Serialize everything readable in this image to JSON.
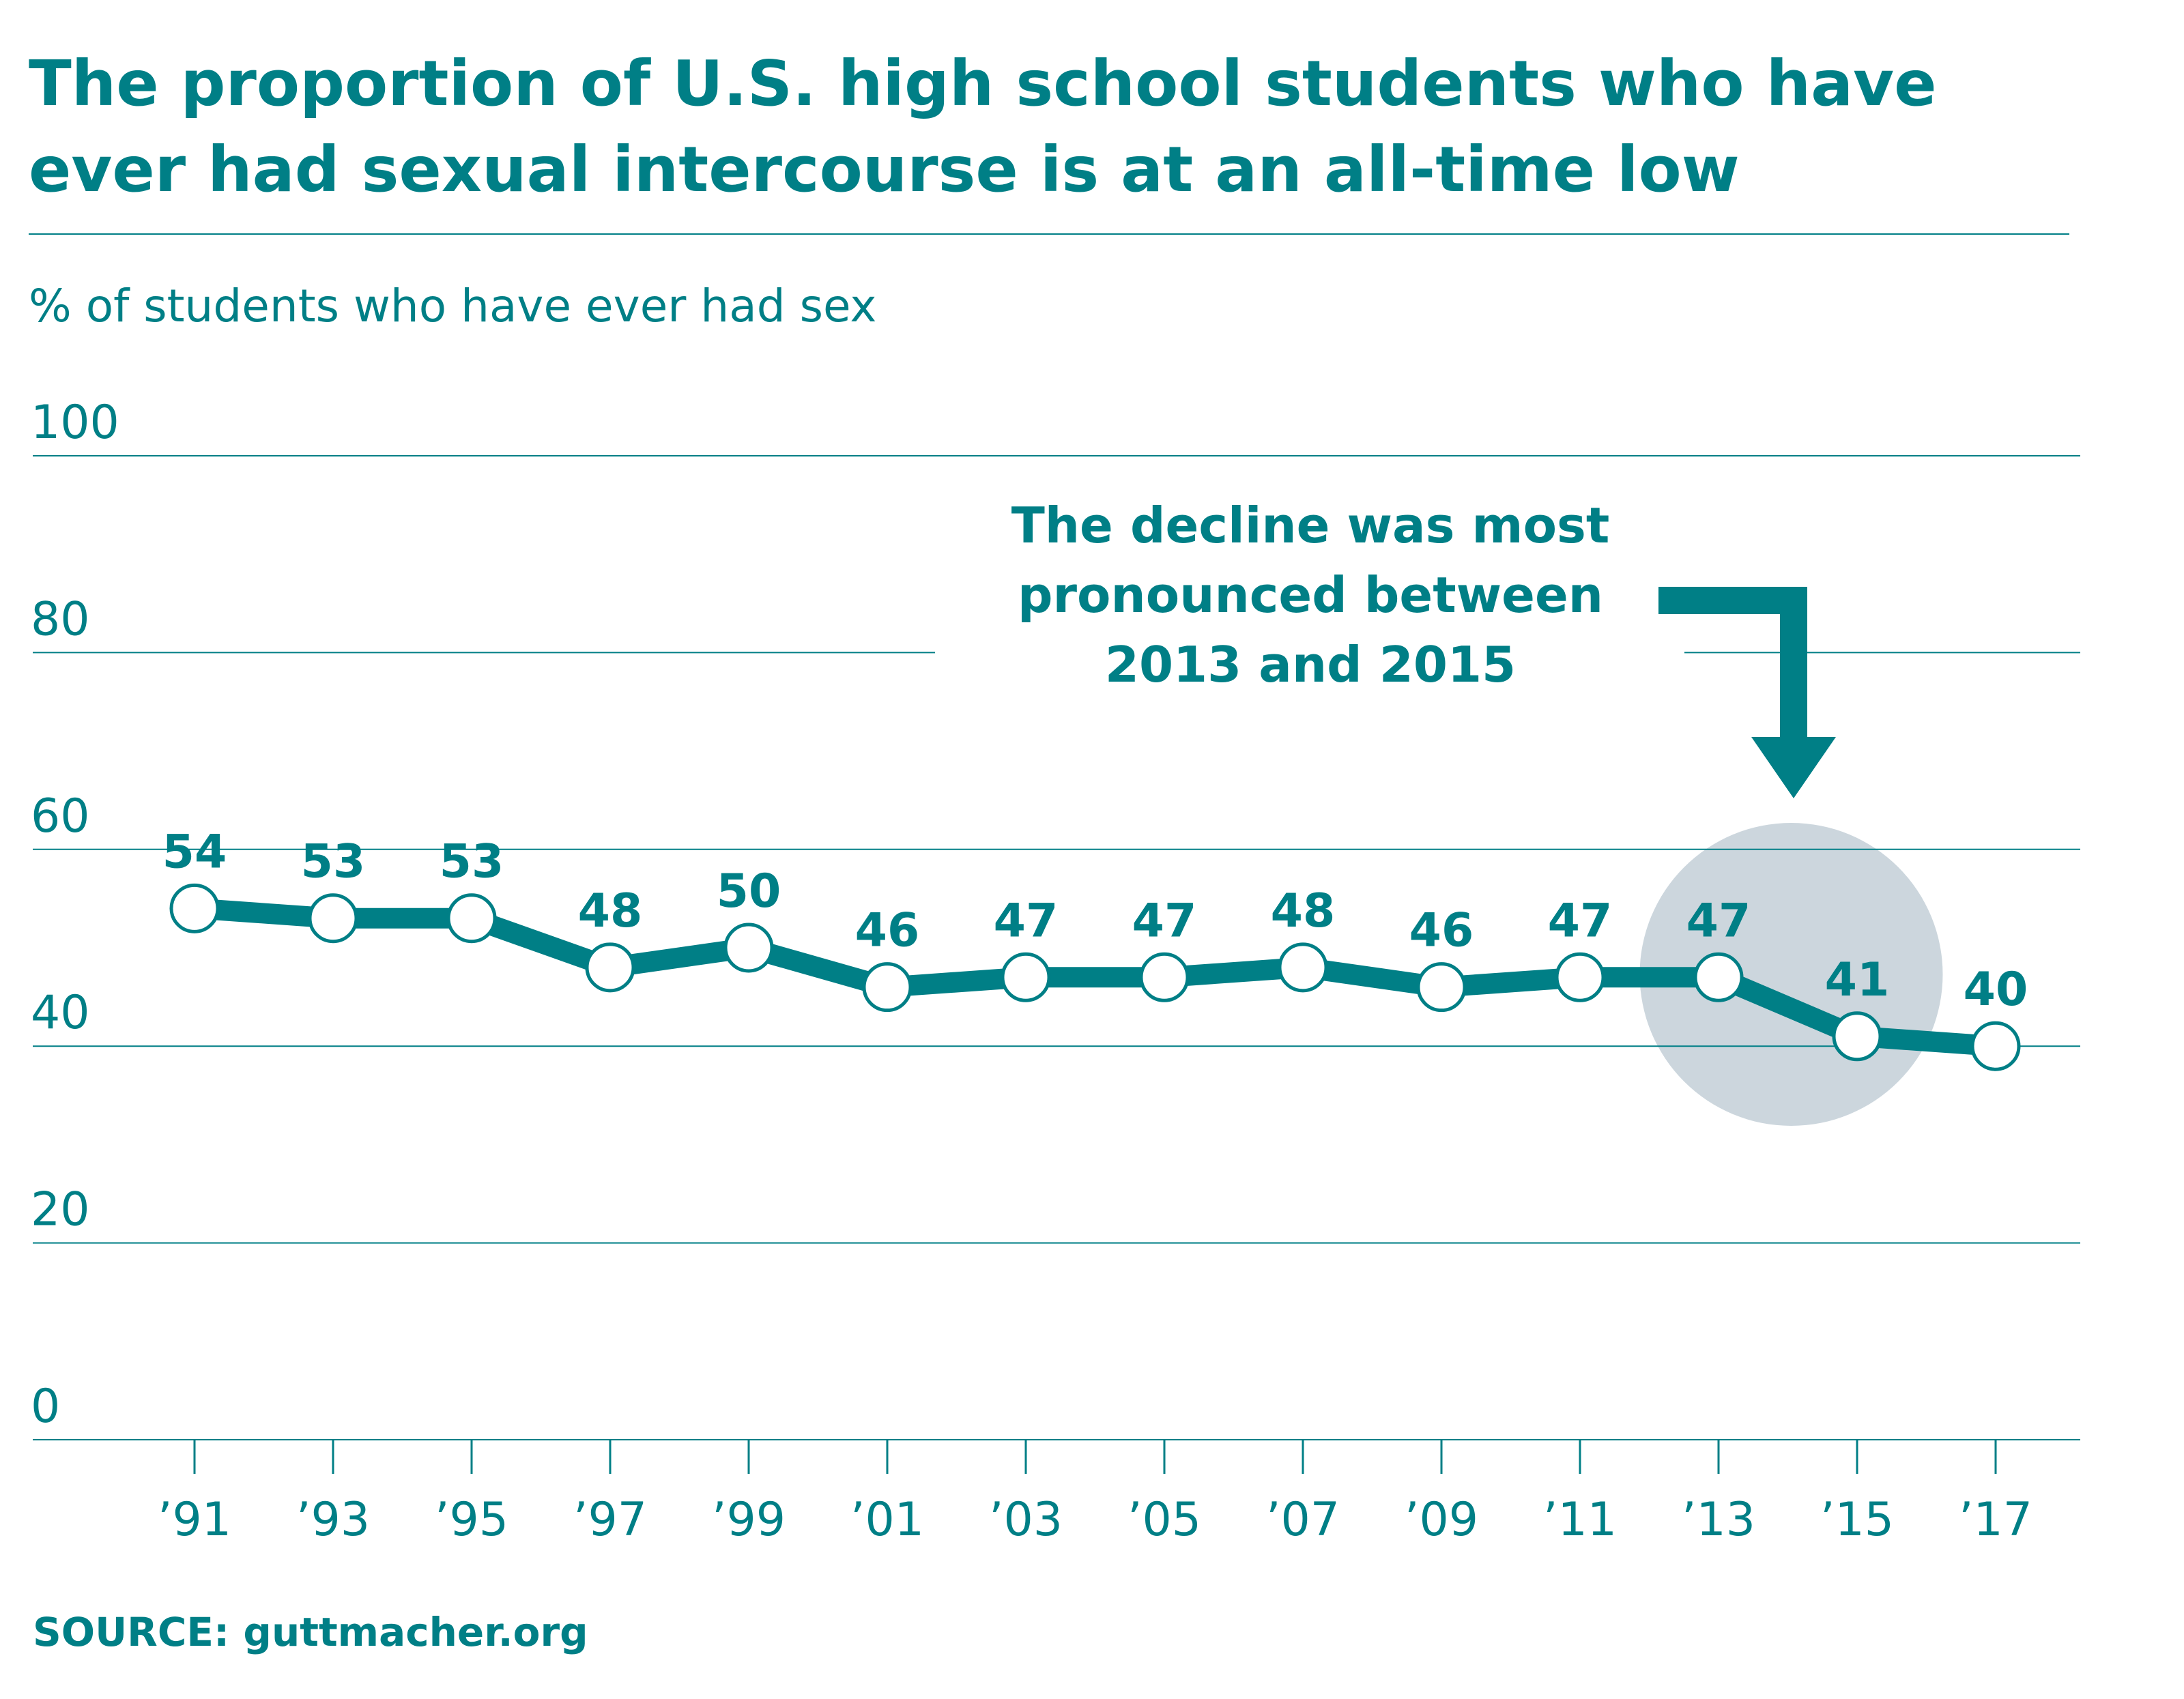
{
  "title": "The proportion of U.S. high school students who have ever had sexual intercourse is at an all-time low",
  "subtitle": "% of students who have ever had sex",
  "source_label": "SOURCE:",
  "source_text": "guttmacher.org",
  "annotation": {
    "lines": [
      "The decline was most",
      "pronounced between",
      "2013 and 2015"
    ]
  },
  "colors": {
    "primary": "#007f86",
    "highlight": "#ccd6dd",
    "marker_fill": "#ffffff"
  },
  "chart_data": {
    "type": "line",
    "categories": [
      "’91",
      "’93",
      "’95",
      "’97",
      "’99",
      "’01",
      "’03",
      "’05",
      "’07",
      "’09",
      "’11",
      "’13",
      "’15",
      "’17"
    ],
    "values": [
      54,
      53,
      53,
      48,
      50,
      46,
      47,
      47,
      48,
      46,
      47,
      47,
      41,
      40
    ],
    "ylabel": "% of students who have ever had sex",
    "ylim": [
      0,
      100
    ],
    "yticks": [
      0,
      20,
      40,
      60,
      80,
      100
    ],
    "grid": true,
    "highlight_categories": [
      "’13",
      "’15"
    ]
  }
}
